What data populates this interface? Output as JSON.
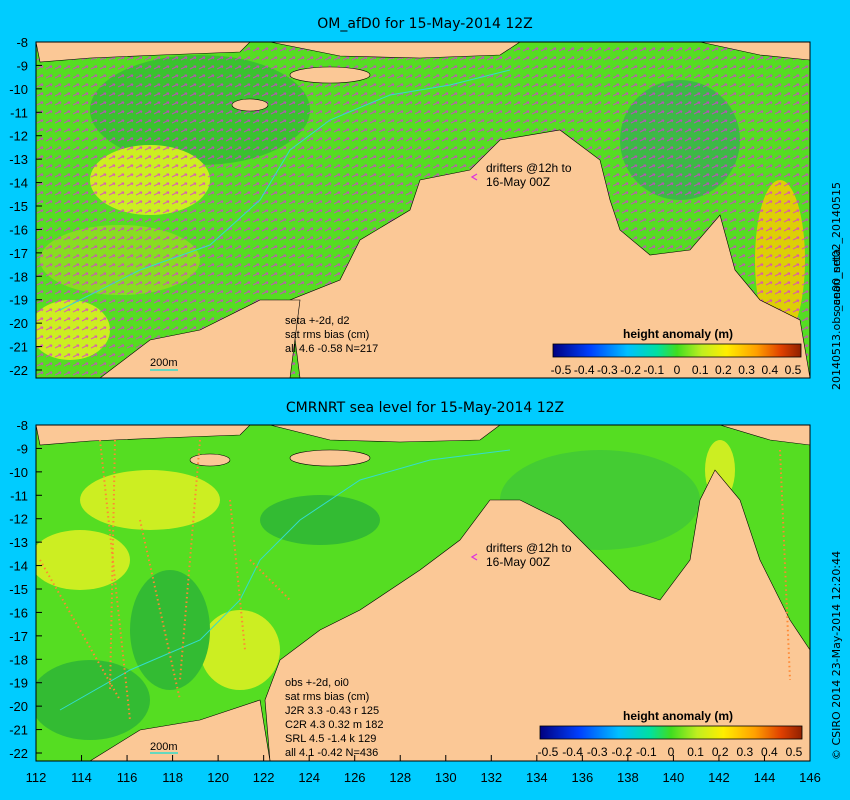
{
  "top": {
    "title": "OM_afD0 for 15-May-2014 12Z",
    "side_label": "ocean_nrt02_20140515",
    "side_label2": "20140513.obs_an00_seta",
    "drifters_line1": "drifters @12h to",
    "drifters_line2": "16-May 00Z",
    "info": [
      "seta +-2d, d2",
      "sat rms bias (cm)",
      "all 4.6 -0.58 N=217"
    ],
    "scale": "200m",
    "legend_title": "height anomaly (m)",
    "legend_ticks": [
      "-0.5",
      "-0.4",
      "-0.3",
      "-0.2",
      "-0.1",
      "0",
      "0.1",
      "0.2",
      "0.3",
      "0.4",
      "0.5"
    ],
    "y_ticks": [
      "-8",
      "-9",
      "-10",
      "-11",
      "-12",
      "-13",
      "-14",
      "-15",
      "-16",
      "-17",
      "-18",
      "-19",
      "-20",
      "-21",
      "-22"
    ]
  },
  "bottom": {
    "title": "CMRNRT sea level  for 15-May-2014 12Z",
    "side_label": "© CSIRO 2014  23-May-2014 12:20:44",
    "drifters_line1": "drifters @12h to",
    "drifters_line2": "16-May 00Z",
    "info": [
      "obs +-2d, oi0",
      "sat rms bias (cm)",
      "J2R    3.3 -0.43 r 125",
      "C2R    4.3 0.32 m 182",
      "SRL    4.5 -1.4 k 129",
      "all    4.1 -0.42 N=436"
    ],
    "scale": "200m",
    "legend_title": "height anomaly (m)",
    "legend_ticks": [
      "-0.5",
      "-0.4",
      "-0.3",
      "-0.2",
      "-0.1",
      "0",
      "0.1",
      "0.2",
      "0.3",
      "0.4",
      "0.5"
    ],
    "y_ticks": [
      "-8",
      "-9",
      "-10",
      "-11",
      "-12",
      "-13",
      "-14",
      "-15",
      "-16",
      "-17",
      "-18",
      "-19",
      "-20",
      "-21",
      "-22"
    ],
    "x_ticks": [
      "112",
      "114",
      "116",
      "118",
      "120",
      "122",
      "124",
      "126",
      "128",
      "130",
      "132",
      "134",
      "136",
      "138",
      "140",
      "142",
      "144",
      "146"
    ]
  },
  "colors": {
    "land": "#fbc896",
    "sea_green": "#55dd22",
    "sea_yellow": "#ccee22",
    "arrows": "#dd33dd",
    "contour": "#33ddcc",
    "background": "#00ccff"
  }
}
